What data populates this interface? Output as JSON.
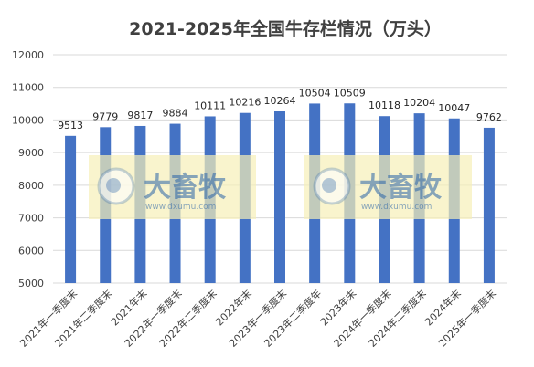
{
  "chart_data": {
    "type": "bar",
    "title": "2021-2025年全国牛存栏情况（万头）",
    "categories": [
      "2021年一季度末",
      "2021年二季度末",
      "2021年末",
      "2022年一季度末",
      "2022年二季度末",
      "2022年末",
      "2023年一季度末",
      "2023年二季度年",
      "2023年末",
      "2024年一季度末",
      "2024年二季度末",
      "2024年末",
      "2025年一季度末"
    ],
    "values": [
      9513,
      9779,
      9817,
      9884,
      10111,
      10216,
      10264,
      10504,
      10509,
      10118,
      10204,
      10047,
      9762
    ],
    "ylim": [
      5000,
      12000
    ],
    "yticks": [
      5000,
      6000,
      7000,
      8000,
      9000,
      10000,
      11000,
      12000
    ],
    "grid": true,
    "bar_color": "#4472c4",
    "grid_color": "#d9d9d9"
  },
  "watermark": {
    "brand": "大畜牧",
    "url": "www.dxumu.com",
    "background_color": "#f7efb8"
  }
}
